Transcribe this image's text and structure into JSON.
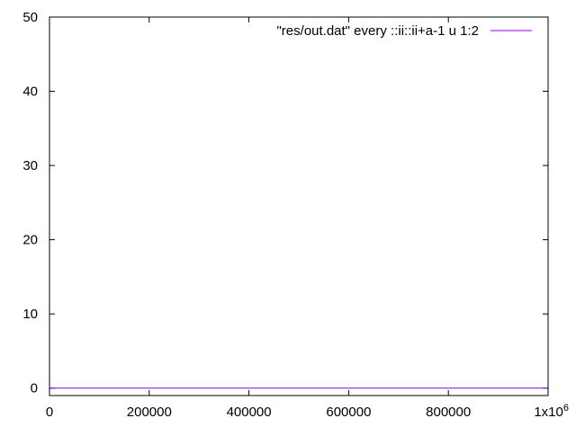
{
  "chart_data": {
    "type": "line",
    "title": "",
    "xlabel": "",
    "ylabel": "",
    "xlim": [
      0,
      1000000
    ],
    "ylim": [
      -1,
      50
    ],
    "x_ticks": [
      0,
      200000,
      400000,
      600000,
      800000,
      1000000
    ],
    "x_tick_labels": [
      "0",
      "200000",
      "400000",
      "600000",
      "800000",
      ""
    ],
    "x_exponent_label": {
      "base": "1x10",
      "power": "6"
    },
    "y_ticks": [
      0,
      10,
      20,
      30,
      40,
      50
    ],
    "y_tick_labels": [
      "0",
      "10",
      "20",
      "30",
      "40",
      "50"
    ],
    "grid": false,
    "legend_position": "top-right",
    "series": [
      {
        "name": "\"res/out.dat\" every ::ii::ii+a-1 u 1:2",
        "color": "#9400d3",
        "x": [
          0,
          1000000
        ],
        "y": [
          0,
          0
        ]
      }
    ]
  }
}
